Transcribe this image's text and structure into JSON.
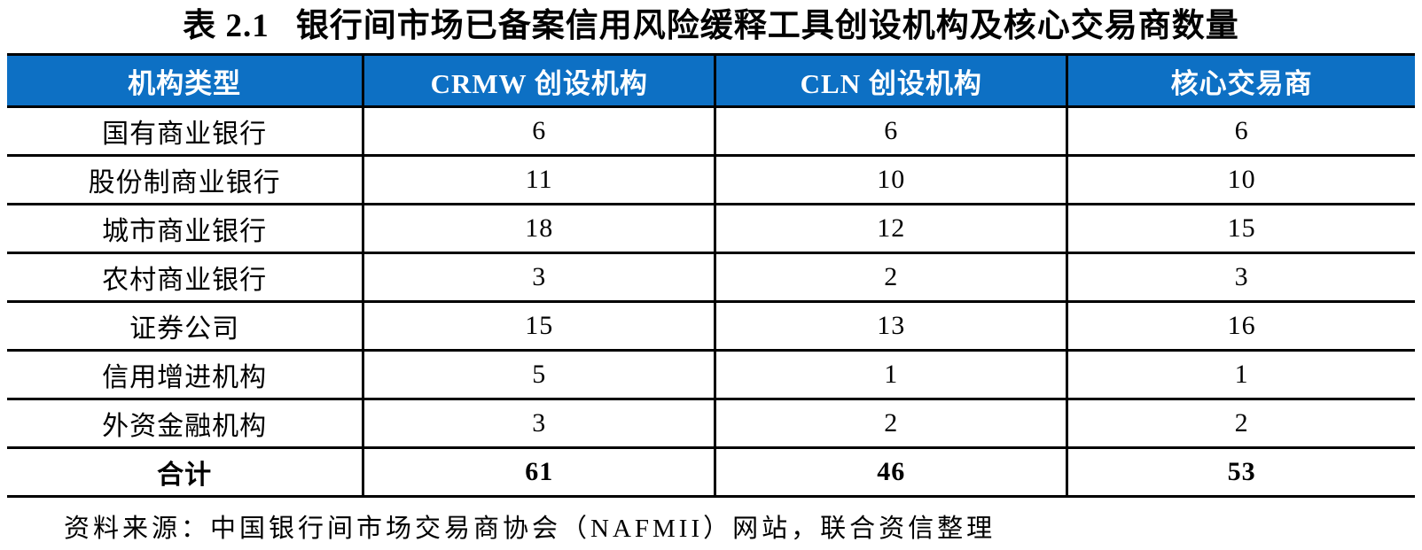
{
  "title": {
    "prefix": "表 2.1",
    "text": "银行间市场已备案信用风险缓释工具创设机构及核心交易商数量"
  },
  "table": {
    "headers": [
      "机构类型",
      "CRMW 创设机构",
      "CLN 创设机构",
      "核心交易商"
    ],
    "rows": [
      [
        "国有商业银行",
        "6",
        "6",
        "6"
      ],
      [
        "股份制商业银行",
        "11",
        "10",
        "10"
      ],
      [
        "城市商业银行",
        "18",
        "12",
        "15"
      ],
      [
        "农村商业银行",
        "3",
        "2",
        "3"
      ],
      [
        "证券公司",
        "15",
        "13",
        "16"
      ],
      [
        "信用增进机构",
        "5",
        "1",
        "1"
      ],
      [
        "外资金融机构",
        "3",
        "2",
        "2"
      ],
      [
        "合计",
        "61",
        "46",
        "53"
      ]
    ]
  },
  "source": "资料来源：中国银行间市场交易商协会（NAFMII）网站，联合资信整理",
  "colors": {
    "header_bg": "#0D70C4",
    "header_text": "#FFFFFF",
    "border": "#000000"
  },
  "chart_data": {
    "type": "table",
    "title": "表 2.1 银行间市场已备案信用风险缓释工具创设机构及核心交易商数量",
    "columns": [
      "机构类型",
      "CRMW 创设机构",
      "CLN 创设机构",
      "核心交易商"
    ],
    "categories": [
      "国有商业银行",
      "股份制商业银行",
      "城市商业银行",
      "农村商业银行",
      "证券公司",
      "信用增进机构",
      "外资金融机构"
    ],
    "series": [
      {
        "name": "CRMW 创设机构",
        "values": [
          6,
          11,
          18,
          3,
          15,
          5,
          3
        ],
        "total": 61
      },
      {
        "name": "CLN 创设机构",
        "values": [
          6,
          10,
          12,
          2,
          13,
          1,
          2
        ],
        "total": 46
      },
      {
        "name": "核心交易商",
        "values": [
          6,
          10,
          15,
          3,
          16,
          1,
          2
        ],
        "total": 53
      }
    ]
  }
}
